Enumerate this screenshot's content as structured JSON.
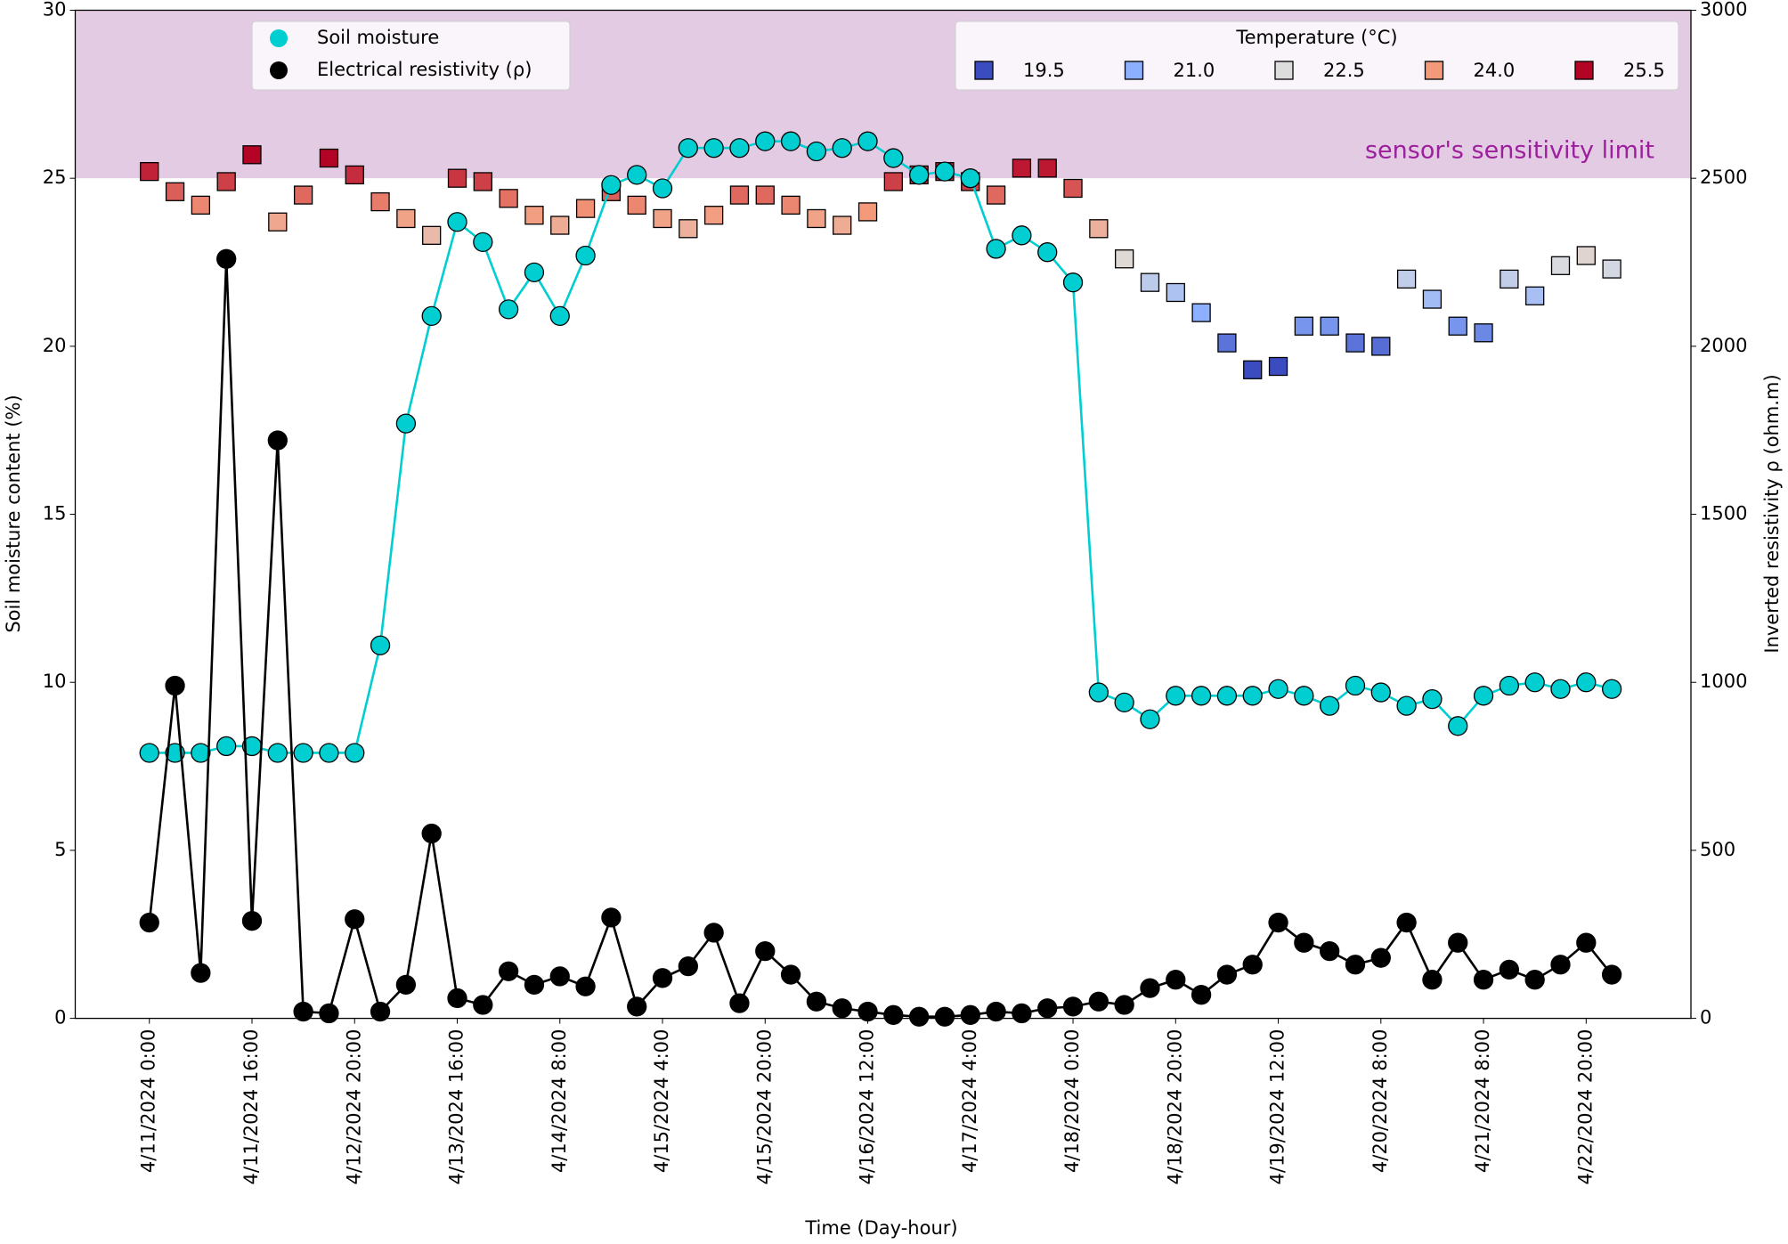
{
  "chart_data": {
    "type": "line",
    "x_label": "Time (Day-hour)",
    "y_label": "Soil moisture content (%)",
    "y2_label": "Inverted resistivity ρ (ohm.m)",
    "categories": [
      "4/11/2024 0:00",
      null,
      null,
      null,
      "4/11/2024 16:00",
      null,
      null,
      null,
      "4/12/2024 20:00",
      null,
      null,
      null,
      "4/13/2024 16:00",
      null,
      null,
      null,
      "4/14/2024 8:00",
      null,
      null,
      null,
      "4/15/2024 4:00",
      null,
      null,
      null,
      "4/15/2024 20:00",
      null,
      null,
      null,
      "4/16/2024 12:00",
      null,
      null,
      null,
      "4/17/2024 4:00",
      null,
      null,
      null,
      "4/18/2024 0:00",
      null,
      null,
      null,
      "4/18/2024 20:00",
      null,
      null,
      null,
      "4/19/2024 12:00",
      null,
      null,
      null,
      "4/20/2024 8:00",
      null,
      null,
      null,
      "4/21/2024 8:00",
      null,
      null,
      null,
      "4/22/2024 20:00",
      null
    ],
    "ylim": [
      0,
      30
    ],
    "yticks": [
      0,
      5,
      10,
      15,
      20,
      25,
      30
    ],
    "y2lim": [
      0,
      3000
    ],
    "y2ticks": [
      0,
      500,
      1000,
      1500,
      2000,
      2500,
      3000
    ],
    "series": [
      {
        "name": "Soil moisture",
        "color": "#00ced1",
        "values": [
          7.9,
          7.9,
          7.9,
          8.1,
          8.1,
          7.9,
          7.9,
          7.9,
          7.9,
          11.1,
          17.7,
          20.9,
          23.7,
          23.1,
          21.1,
          22.2,
          20.9,
          22.7,
          24.8,
          25.1,
          24.7,
          25.9,
          25.9,
          25.9,
          26.1,
          26.1,
          25.8,
          25.9,
          26.1,
          25.6,
          25.1,
          25.2,
          25.0,
          22.9,
          23.3,
          22.8,
          21.9,
          9.7,
          9.4,
          8.9,
          9.6,
          9.6,
          9.6,
          9.6,
          9.8,
          9.6,
          9.3,
          9.9,
          9.7,
          9.3,
          9.5,
          8.7,
          9.6,
          9.9,
          10.0,
          9.8,
          10.0,
          9.8
        ]
      },
      {
        "name": "Electrical resistivity (ρ)",
        "color": "#000000",
        "axis": "y2",
        "values": [
          285,
          990,
          135,
          2260,
          290,
          1720,
          20,
          15,
          295,
          20,
          100,
          550,
          60,
          40,
          140,
          100,
          125,
          95,
          300,
          35,
          120,
          155,
          255,
          45,
          200,
          130,
          50,
          30,
          20,
          10,
          5,
          5,
          10,
          20,
          15,
          30,
          35,
          50,
          40,
          90,
          115,
          70,
          130,
          160,
          285,
          225,
          200,
          160,
          180,
          285,
          115,
          225,
          115,
          145,
          115,
          160,
          225,
          130
        ]
      }
    ],
    "temperature": {
      "title": "Temperature (°C)",
      "values": [
        25.2,
        24.6,
        24.2,
        24.9,
        25.7,
        23.7,
        24.5,
        25.6,
        25.1,
        24.3,
        23.8,
        23.3,
        25.0,
        24.9,
        24.4,
        23.9,
        23.6,
        24.1,
        24.6,
        24.2,
        23.8,
        23.5,
        23.9,
        24.5,
        24.5,
        24.2,
        23.8,
        23.6,
        24.0,
        24.9,
        25.1,
        25.2,
        24.9,
        24.5,
        25.3,
        25.3,
        24.7,
        23.5,
        22.6,
        21.9,
        21.6,
        21.0,
        20.1,
        19.3,
        19.4,
        20.6,
        20.6,
        20.1,
        20.0,
        22.0,
        21.4,
        20.6,
        20.4,
        22.0,
        21.5,
        22.4,
        22.7,
        22.3
      ],
      "legend_values": [
        19.5,
        {
          "value": 21,
          "label": "21.0"
        },
        22.5,
        {
          "value": 24,
          "label": "24.0"
        },
        25.5
      ],
      "colors": [
        "#3b4cc0",
        "#8db0fe",
        "#dddddd",
        "#f49a7b",
        "#b40426"
      ]
    },
    "shaded_region": {
      "from": 25,
      "to": 30,
      "label": "sensor's sensitivity limit",
      "color": "#e4cbe4",
      "label_color": "#9c209c"
    }
  }
}
